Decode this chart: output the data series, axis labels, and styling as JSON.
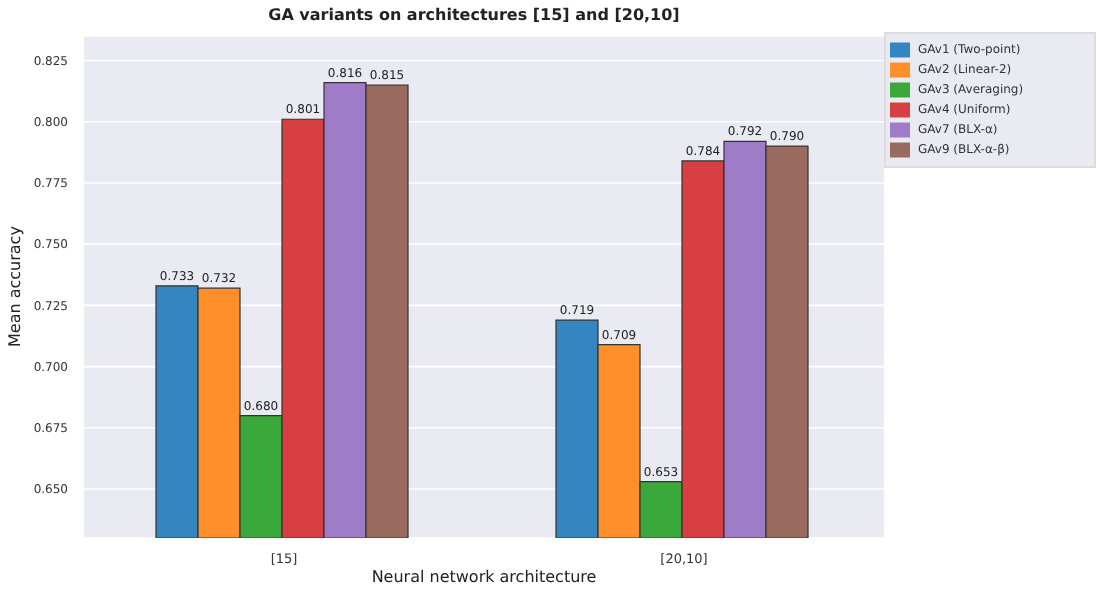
{
  "chart_data": {
    "type": "bar",
    "title": "GA variants on architectures [15] and [20,10]",
    "xlabel": "Neural network architecture",
    "ylabel": "Mean accuracy",
    "categories": [
      "[15]",
      "[20,10]"
    ],
    "series": [
      {
        "name": "GAv1 (Two-point)",
        "color": "#3586c0",
        "values": [
          0.733,
          0.719
        ],
        "value_labels": [
          "0.733",
          "0.719"
        ]
      },
      {
        "name": "GAv2 (Linear-2)",
        "color": "#ff8f2b",
        "values": [
          0.732,
          0.709
        ],
        "value_labels": [
          "0.732",
          "0.709"
        ]
      },
      {
        "name": "GAv3 (Averaging)",
        "color": "#3aa83a",
        "values": [
          0.68,
          0.653
        ],
        "value_labels": [
          "0.680",
          "0.653"
        ]
      },
      {
        "name": "GAv4 (Uniform)",
        "color": "#d83f40",
        "values": [
          0.801,
          0.784
        ],
        "value_labels": [
          "0.801",
          "0.784"
        ]
      },
      {
        "name": "GAv7 (BLX-α)",
        "color": "#a07bc7",
        "values": [
          0.816,
          0.792
        ],
        "value_labels": [
          "0.816",
          "0.792"
        ]
      },
      {
        "name": "GAv9 (BLX-α-β)",
        "color": "#9a6a5f",
        "values": [
          0.815,
          0.79
        ],
        "value_labels": [
          "0.815",
          "0.790"
        ]
      }
    ],
    "ylim": [
      0.63,
      0.835
    ],
    "yticks": [
      {
        "value": 0.65,
        "label": "0.650"
      },
      {
        "value": 0.675,
        "label": "0.675"
      },
      {
        "value": 0.7,
        "label": "0.700"
      },
      {
        "value": 0.725,
        "label": "0.725"
      },
      {
        "value": 0.75,
        "label": "0.750"
      },
      {
        "value": 0.775,
        "label": "0.775"
      },
      {
        "value": 0.8,
        "label": "0.800"
      },
      {
        "value": 0.825,
        "label": "0.825"
      }
    ],
    "grid": "y",
    "legend": "top right"
  }
}
